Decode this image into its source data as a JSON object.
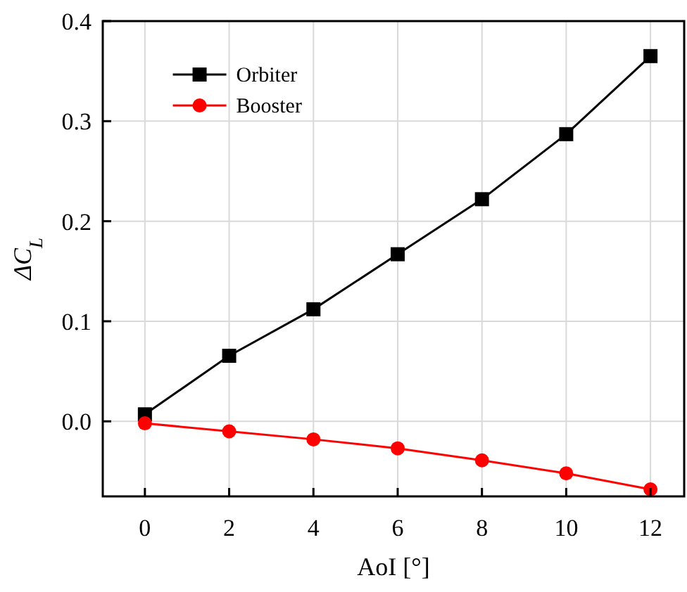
{
  "chart_data": {
    "type": "line",
    "xlabel": "AoI [°]",
    "ylabel": "ΔC$_{L}$",
    "x": [
      0,
      2,
      4,
      6,
      8,
      10,
      12
    ],
    "series": [
      {
        "name": "Orbiter",
        "color": "#000000",
        "marker": "square",
        "values": [
          0.007,
          0.0655,
          0.112,
          0.167,
          0.222,
          0.287,
          0.365
        ]
      },
      {
        "name": "Booster",
        "color": "#ff0000",
        "marker": "circle",
        "values": [
          -0.002,
          -0.01,
          -0.018,
          -0.027,
          -0.039,
          -0.052,
          -0.068
        ]
      }
    ],
    "xlim": [
      -1,
      12.8
    ],
    "xticks": [
      0,
      2,
      4,
      6,
      8,
      10,
      12
    ],
    "ylim": [
      -0.075,
      0.4
    ],
    "yticks": [
      {
        "value": 0,
        "label": "0.0"
      },
      0.1,
      0.2,
      0.3,
      0.4
    ],
    "grid": true,
    "legend": "top left"
  }
}
